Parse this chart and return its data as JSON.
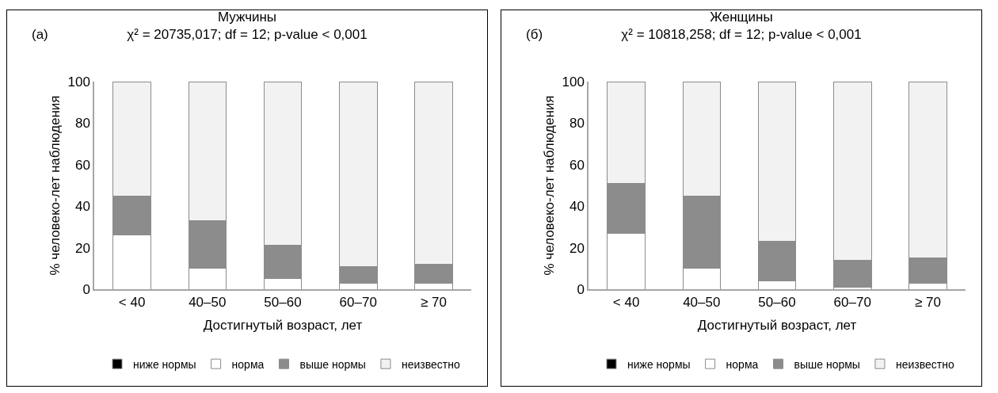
{
  "chart_data": [
    {
      "type": "bar",
      "stacked": true,
      "title": "Мужчины",
      "subtitle": "χ² = 20735,017; df = 12; p-value < 0,001",
      "annotations": [
        "(a)"
      ],
      "xlabel": "Достигнутый возраст, лет",
      "ylabel": "% человеко-лет наблюдения",
      "categories": [
        "< 40",
        "40–50",
        "50–60",
        "60–70",
        "≥ 70"
      ],
      "series": [
        {
          "name": "ниже нормы",
          "color": "#000000",
          "values": [
            0,
            0,
            0,
            0,
            0
          ]
        },
        {
          "name": "норма",
          "color": "#ffffff",
          "values": [
            26,
            10,
            5,
            3,
            3
          ]
        },
        {
          "name": "выше нормы",
          "color": "#8c8c8c",
          "values": [
            19,
            23,
            16,
            8,
            9
          ]
        },
        {
          "name": "неизвестно",
          "color": "#f2f2f2",
          "values": [
            55,
            67,
            79,
            89,
            88
          ]
        }
      ],
      "ylim": [
        0,
        100
      ],
      "yticks": [
        0,
        20,
        40,
        60,
        80,
        100
      ],
      "grid": false,
      "legend": "bottom"
    },
    {
      "type": "bar",
      "stacked": true,
      "title": "Женщины",
      "subtitle": "χ² = 10818,258; df = 12; p-value < 0,001",
      "annotations": [
        "(б)"
      ],
      "xlabel": "Достигнутый возраст, лет",
      "ylabel": "% человеко-лет наблюдения",
      "categories": [
        "< 40",
        "40–50",
        "50–60",
        "60–70",
        "≥ 70"
      ],
      "series": [
        {
          "name": "ниже нормы",
          "color": "#000000",
          "values": [
            0,
            0,
            0,
            0,
            0
          ]
        },
        {
          "name": "норма",
          "color": "#ffffff",
          "values": [
            27,
            10,
            4,
            1,
            3
          ]
        },
        {
          "name": "выше нормы",
          "color": "#8c8c8c",
          "values": [
            24,
            35,
            19,
            13,
            12
          ]
        },
        {
          "name": "неизвестно",
          "color": "#f2f2f2",
          "values": [
            49,
            55,
            77,
            86,
            85
          ]
        }
      ],
      "ylim": [
        0,
        100
      ],
      "yticks": [
        0,
        20,
        40,
        60,
        80,
        100
      ],
      "grid": false,
      "legend": "bottom"
    }
  ]
}
